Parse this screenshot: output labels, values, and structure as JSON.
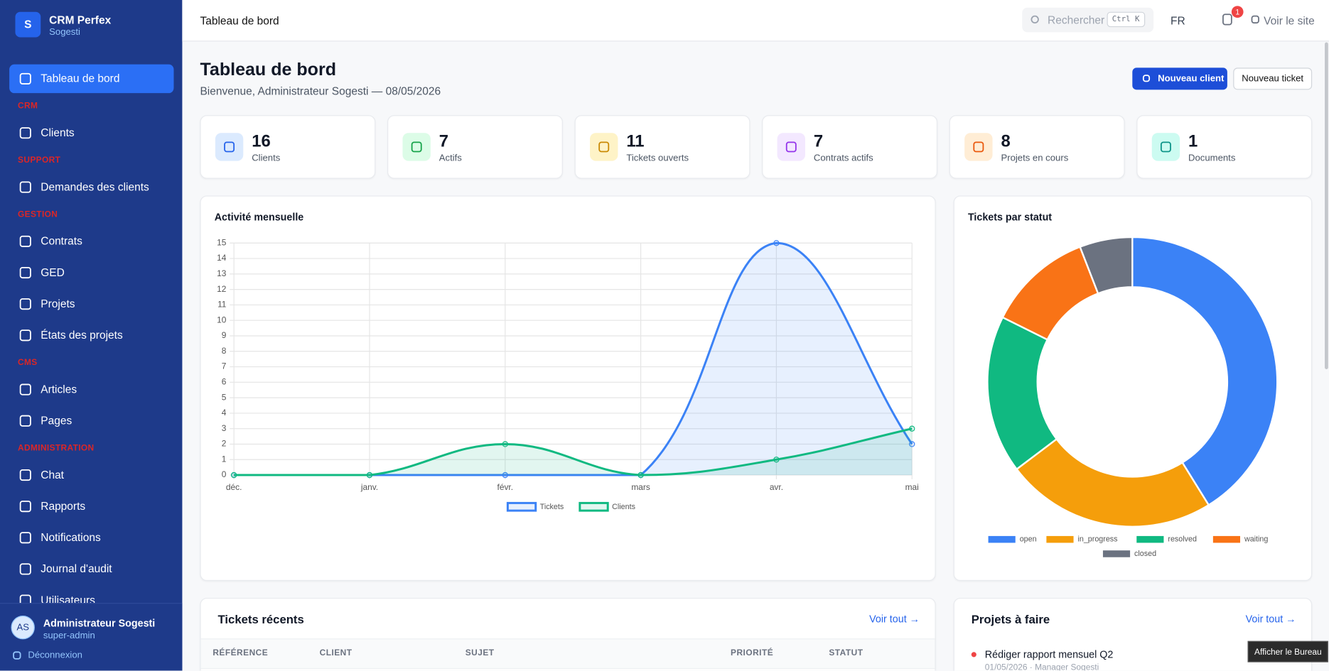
{
  "sidebar": {
    "logo": "S",
    "brand": "CRM Perfex",
    "org": "Sogesti",
    "nav": [
      {
        "label": "Tableau de bord",
        "active": true
      },
      {
        "section": "CRM"
      },
      {
        "label": "Clients"
      },
      {
        "section": "SUPPORT"
      },
      {
        "label": "Demandes des clients"
      },
      {
        "section": "GESTION"
      },
      {
        "label": "Contrats"
      },
      {
        "label": "GED"
      },
      {
        "label": "Projets"
      },
      {
        "label": "États des projets"
      },
      {
        "section": "CMS"
      },
      {
        "label": "Articles"
      },
      {
        "label": "Pages"
      },
      {
        "section": "ADMINISTRATION"
      },
      {
        "label": "Chat"
      },
      {
        "label": "Rapports"
      },
      {
        "label": "Notifications"
      },
      {
        "label": "Journal d'audit"
      },
      {
        "label": "Utilisateurs"
      }
    ],
    "user": {
      "initials": "AS",
      "name": "Administrateur Sogesti",
      "role": "super-admin"
    },
    "logout": "Déconnexion"
  },
  "topbar": {
    "title": "Tableau de bord",
    "search": "Rechercher",
    "shortcut": "Ctrl K",
    "lang": "FR",
    "notif_count": 1,
    "site": "Voir le site"
  },
  "page": {
    "title": "Tableau de bord",
    "subtitle": "Bienvenue, Administrateur Sogesti — 08/05/2026",
    "primary_button": "Nouveau client",
    "secondary_button": "Nouveau ticket"
  },
  "stats": [
    {
      "value": 16,
      "label": "Clients"
    },
    {
      "value": 7,
      "label": "Actifs"
    },
    {
      "value": 11,
      "label": "Tickets ouverts"
    },
    {
      "value": 7,
      "label": "Contrats actifs"
    },
    {
      "value": 8,
      "label": "Projets en cours"
    },
    {
      "value": 1,
      "label": "Documents"
    }
  ],
  "chart_data": [
    {
      "type": "line",
      "title": "Activité mensuelle",
      "categories": [
        "déc.",
        "janv.",
        "févr.",
        "mars",
        "avr.",
        "mai"
      ],
      "series": [
        {
          "name": "Tickets",
          "color": "#3b82f6",
          "values": [
            0,
            0,
            0,
            0,
            15,
            2
          ]
        },
        {
          "name": "Clients",
          "color": "#10b981",
          "values": [
            0,
            0,
            2,
            0,
            1,
            3
          ]
        }
      ],
      "ylim": [
        0,
        15
      ],
      "yticks": [
        0,
        1,
        2,
        3,
        4,
        5,
        6,
        7,
        8,
        9,
        10,
        11,
        12,
        13,
        14,
        15
      ],
      "grid": true,
      "legend": "bottom"
    },
    {
      "type": "doughnut",
      "title": "Tickets par statut",
      "categories": [
        "open",
        "in_progress",
        "resolved",
        "waiting",
        "closed"
      ],
      "values": [
        7,
        4,
        3,
        2,
        1
      ],
      "colors": [
        "#3b82f6",
        "#f59e0b",
        "#10b981",
        "#f97316",
        "#6b7280"
      ],
      "legend": "bottom"
    }
  ],
  "recent_tickets": {
    "title": "Tickets récents",
    "link": "Voir tout →",
    "columns": [
      "RÉFÉRENCE",
      "CLIENT",
      "SUJET",
      "PRIORITÉ",
      "STATUT"
    ]
  },
  "projects": {
    "title": "Projets à faire",
    "link": "Voir tout →",
    "items": [
      {
        "title": "Rédiger rapport mensuel Q2",
        "meta": "01/05/2026 · Manager Sogesti"
      }
    ]
  },
  "tooltip": "Afficher le Bureau"
}
